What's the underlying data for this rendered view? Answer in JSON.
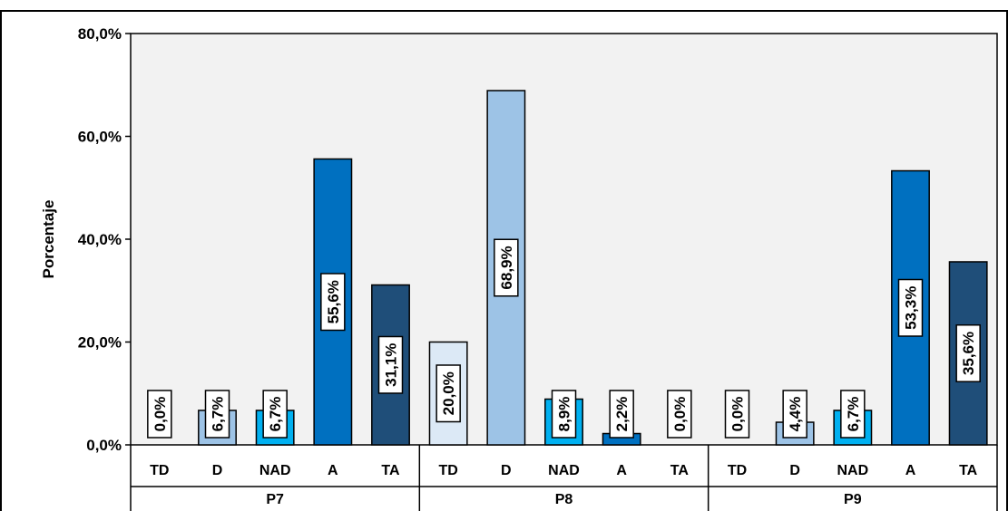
{
  "chart_data": {
    "type": "bar",
    "ylabel": "Porcentaje",
    "ylim": [
      0,
      80
    ],
    "yticks": [
      "0,0%",
      "20,0%",
      "40,0%",
      "60,0%",
      "80,0%"
    ],
    "grid": false,
    "groups": [
      {
        "name": "P7",
        "bars": [
          {
            "category": "TD",
            "value": 0.0,
            "label": "0,0%",
            "color": "#dce9f6"
          },
          {
            "category": "D",
            "value": 6.7,
            "label": "6,7%",
            "color": "#9dc3e6"
          },
          {
            "category": "NAD",
            "value": 6.7,
            "label": "6,7%",
            "color": "#00b0f0"
          },
          {
            "category": "A",
            "value": 55.6,
            "label": "55,6%",
            "color": "#0070c0"
          },
          {
            "category": "TA",
            "value": 31.1,
            "label": "31,1%",
            "color": "#1f4e79"
          }
        ]
      },
      {
        "name": "P8",
        "bars": [
          {
            "category": "TD",
            "value": 20.0,
            "label": "20,0%",
            "color": "#dce9f6"
          },
          {
            "category": "D",
            "value": 68.9,
            "label": "68,9%",
            "color": "#9dc3e6"
          },
          {
            "category": "NAD",
            "value": 8.9,
            "label": "8,9%",
            "color": "#00b0f0"
          },
          {
            "category": "A",
            "value": 2.2,
            "label": "2,2%",
            "color": "#0070c0"
          },
          {
            "category": "TA",
            "value": 0.0,
            "label": "0,0%",
            "color": "#1f4e79"
          }
        ]
      },
      {
        "name": "P9",
        "bars": [
          {
            "category": "TD",
            "value": 0.0,
            "label": "0,0%",
            "color": "#dce9f6"
          },
          {
            "category": "D",
            "value": 4.4,
            "label": "4,4%",
            "color": "#9dc3e6"
          },
          {
            "category": "NAD",
            "value": 6.7,
            "label": "6,7%",
            "color": "#00b0f0"
          },
          {
            "category": "A",
            "value": 53.3,
            "label": "53,3%",
            "color": "#0070c0"
          },
          {
            "category": "TA",
            "value": 35.6,
            "label": "35,6%",
            "color": "#1f4e79"
          }
        ]
      }
    ],
    "plot_background": "#f2f2f2"
  }
}
